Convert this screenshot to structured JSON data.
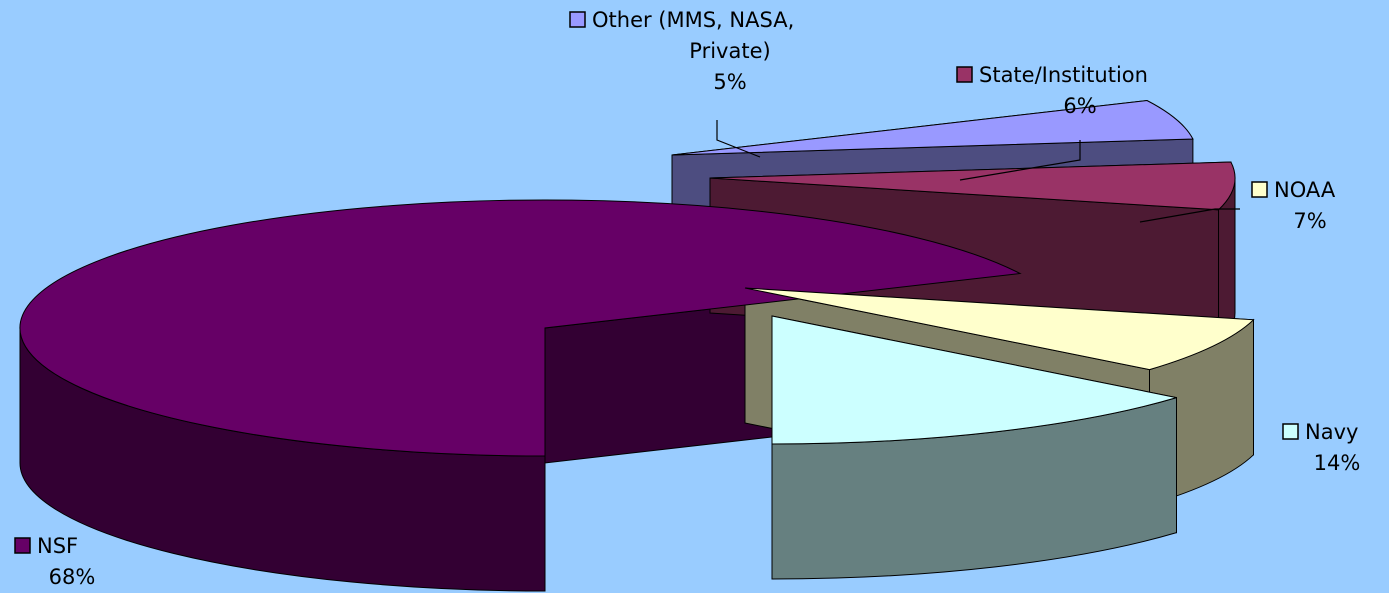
{
  "chart_data": {
    "type": "pie",
    "variant": "3d-exploded",
    "background": "#99ccff",
    "slices": [
      {
        "label": "NSF",
        "value": 68,
        "value_label": "68%",
        "color": "#660066",
        "side_color": "#330033"
      },
      {
        "label": "Other (MMS, NASA, Private)",
        "label_lines": [
          "Other (MMS, NASA,",
          "Private)"
        ],
        "value": 5,
        "value_label": "5%",
        "color": "#9999ff",
        "side_color": "#4d4d80"
      },
      {
        "label": "State/Institution",
        "value": 6,
        "value_label": "6%",
        "color": "#993366",
        "side_color": "#4d1a33"
      },
      {
        "label": "NOAA",
        "value": 7,
        "value_label": "7%",
        "color": "#ffffcc",
        "side_color": "#808066"
      },
      {
        "label": "Navy",
        "value": 14,
        "value_label": "14%",
        "color": "#ccffff",
        "side_color": "#668080"
      }
    ]
  }
}
